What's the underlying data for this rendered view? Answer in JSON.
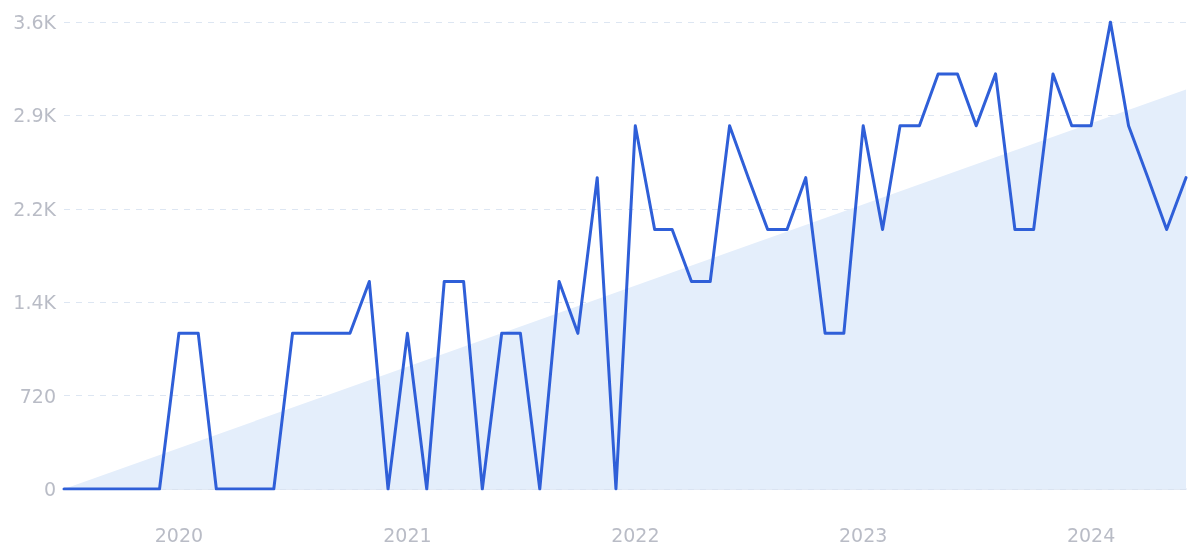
{
  "chart_data": {
    "type": "line",
    "x": [
      "2019-07",
      "2019-08",
      "2019-09",
      "2019-10",
      "2019-11",
      "2019-12",
      "2020-01",
      "2020-02",
      "2020-03",
      "2020-04",
      "2020-05",
      "2020-06",
      "2020-07",
      "2020-08",
      "2020-09",
      "2020-10",
      "2020-11",
      "2020-12",
      "2021-01",
      "2021-02",
      "2021-03",
      "2021-04",
      "2021-05",
      "2021-06",
      "2021-07",
      "2021-08",
      "2021-09",
      "2021-10",
      "2021-11",
      "2021-12",
      "2022-01",
      "2022-02",
      "2022-03",
      "2022-04",
      "2022-05",
      "2022-06",
      "2022-07",
      "2022-08",
      "2022-09",
      "2022-10",
      "2022-11",
      "2022-12",
      "2023-01",
      "2023-02",
      "2023-03",
      "2023-04",
      "2023-05",
      "2023-06",
      "2023-07",
      "2023-08",
      "2023-09",
      "2023-10",
      "2023-11",
      "2023-12",
      "2024-01",
      "2024-02",
      "2024-03",
      "2024-04",
      "2024-05",
      "2024-06"
    ],
    "series": [
      {
        "type": "area",
        "color": "#e4eefb",
        "x": [
          "2019-07",
          "2024-06"
        ],
        "values": [
          0,
          3080
        ]
      },
      {
        "color": "#2f5fd8",
        "values": [
          0,
          0,
          0,
          0,
          0,
          0,
          1200,
          1200,
          0,
          0,
          0,
          0,
          1200,
          1200,
          1200,
          1200,
          1600,
          0,
          1200,
          0,
          1600,
          1600,
          0,
          1200,
          1200,
          0,
          1600,
          1200,
          2400,
          0,
          2800,
          2000,
          2000,
          1600,
          1600,
          2800,
          2400,
          2000,
          2000,
          2400,
          1200,
          1200,
          2800,
          2000,
          2800,
          2800,
          3200,
          3200,
          2800,
          3200,
          2000,
          2000,
          3200,
          2800,
          2800,
          3600,
          2800,
          2400,
          2000,
          2400
        ]
      }
    ],
    "xlim": [
      "2019-07",
      "2024-06"
    ],
    "xticks": [
      "2020",
      "2021",
      "2022",
      "2023",
      "2024"
    ],
    "ylim": [
      0,
      3600
    ],
    "yticks": [
      0,
      720,
      {
        "value": 1440,
        "label": "1.4K"
      },
      {
        "value": 2160,
        "label": "2.2K"
      },
      {
        "value": 2880,
        "label": "2.9K"
      },
      {
        "value": 3600,
        "label": "3.6K"
      }
    ],
    "grid": "y",
    "marker": "none"
  }
}
